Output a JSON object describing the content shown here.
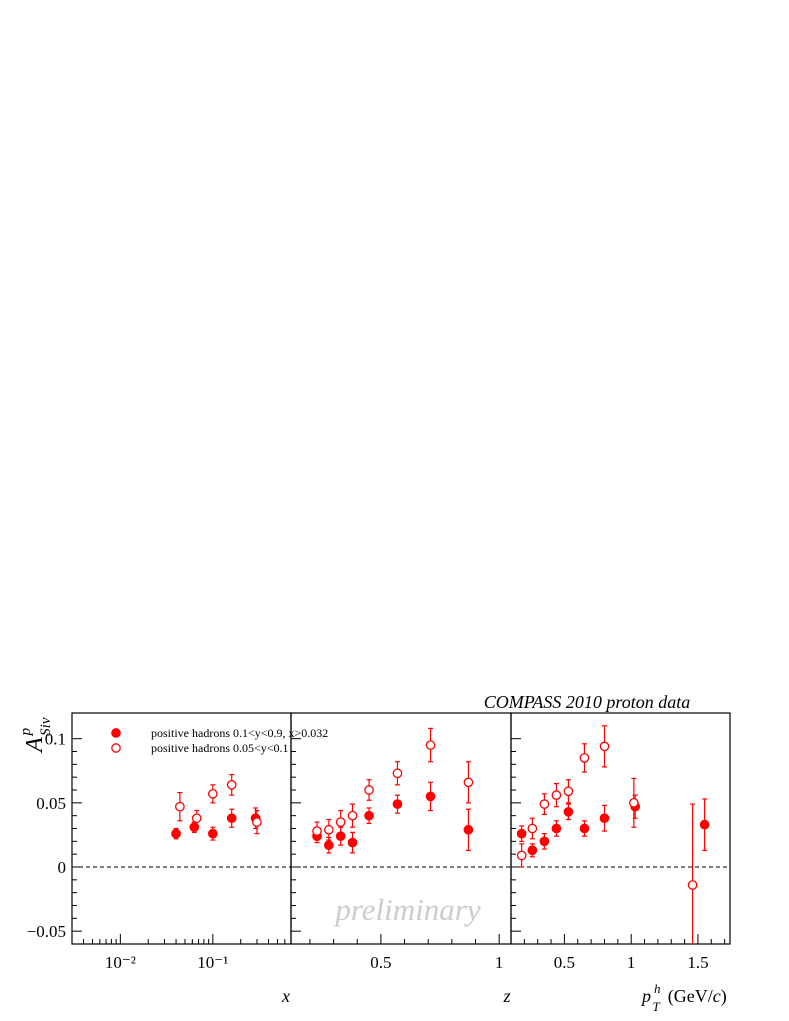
{
  "chart_data": {
    "type": "scatter",
    "title": "COMPASS 2010 proton data",
    "watermark": "preliminary",
    "ylabel": {
      "base": "A",
      "sup": "p",
      "sub": "Siv"
    },
    "ylim": [
      -0.06,
      0.12
    ],
    "yticks": [
      -0.05,
      0,
      0.05,
      0.1
    ],
    "ytick_labels": [
      "−0.05",
      "0",
      "0.05",
      "0.1"
    ],
    "reference_line": {
      "y": 0,
      "style": "dashed"
    },
    "colors": {
      "series": "#ff0000",
      "axes": "#000000",
      "watermark": "#cccccc"
    },
    "legend": {
      "placement": "top-left",
      "entries": [
        {
          "marker": "filled-circle",
          "label": "positive hadrons 0.1<y<0.9, x>0.032"
        },
        {
          "marker": "open-circle",
          "label": "positive hadrons 0.05<y<0.1"
        }
      ]
    },
    "panels": [
      {
        "xlabel": "x",
        "xscale": "log",
        "xlim": [
          0.003,
          0.7
        ],
        "xtick_labels": [
          "10⁻²",
          "10⁻¹"
        ],
        "series": [
          {
            "name": "positive hadrons 0.1<y<0.9, x>0.032",
            "marker": "filled",
            "x": [
              0.04,
              0.063,
              0.1,
              0.16,
              0.29
            ],
            "y": [
              0.026,
              0.031,
              0.026,
              0.038,
              0.038
            ],
            "err": [
              0.004,
              0.004,
              0.005,
              0.007,
              0.008
            ]
          },
          {
            "name": "positive hadrons 0.05<y<0.1",
            "marker": "open",
            "x": [
              0.044,
              0.067,
              0.1,
              0.16,
              0.3
            ],
            "y": [
              0.047,
              0.038,
              0.057,
              0.064,
              0.035
            ],
            "err": [
              0.011,
              0.006,
              0.007,
              0.008,
              0.009
            ]
          }
        ]
      },
      {
        "xlabel": "z",
        "xscale": "linear",
        "xlim": [
          0.12,
          1.05
        ],
        "xtick_labels": [
          "0.5",
          "1"
        ],
        "series": [
          {
            "name": "positive hadrons 0.1<y<0.9, x>0.032",
            "marker": "filled",
            "x": [
              0.23,
              0.28,
              0.33,
              0.38,
              0.45,
              0.57,
              0.71,
              0.87
            ],
            "y": [
              0.024,
              0.017,
              0.024,
              0.019,
              0.04,
              0.049,
              0.055,
              0.029
            ],
            "err": [
              0.005,
              0.006,
              0.007,
              0.008,
              0.006,
              0.007,
              0.011,
              0.016
            ]
          },
          {
            "name": "positive hadrons 0.05<y<0.1",
            "marker": "open",
            "x": [
              0.23,
              0.28,
              0.33,
              0.38,
              0.45,
              0.57,
              0.71,
              0.87
            ],
            "y": [
              0.028,
              0.029,
              0.035,
              0.04,
              0.06,
              0.073,
              0.095,
              0.066
            ],
            "err": [
              0.007,
              0.008,
              0.009,
              0.009,
              0.008,
              0.009,
              0.013,
              0.016
            ]
          }
        ]
      },
      {
        "xlabel": "p_T^h (GeV/c)",
        "xscale": "linear",
        "xlim": [
          0.1,
          1.74
        ],
        "xtick_labels": [
          "0.5",
          "1",
          "1.5"
        ],
        "series": [
          {
            "name": "positive hadrons 0.1<y<0.9, x>0.032",
            "marker": "filled",
            "x": [
              0.18,
              0.26,
              0.35,
              0.44,
              0.53,
              0.65,
              0.8,
              1.03,
              1.55
            ],
            "y": [
              0.026,
              0.013,
              0.02,
              0.03,
              0.043,
              0.03,
              0.038,
              0.047,
              0.033
            ],
            "err": [
              0.006,
              0.005,
              0.006,
              0.006,
              0.006,
              0.006,
              0.01,
              0.009,
              0.02
            ]
          },
          {
            "name": "positive hadrons 0.05<y<0.1",
            "marker": "open",
            "x": [
              0.18,
              0.26,
              0.35,
              0.44,
              0.53,
              0.65,
              0.8,
              1.02,
              1.46
            ],
            "y": [
              0.009,
              0.03,
              0.049,
              0.056,
              0.059,
              0.085,
              0.094,
              0.05,
              -0.014
            ],
            "err": [
              0.009,
              0.008,
              0.008,
              0.009,
              0.009,
              0.011,
              0.016,
              0.019,
              0.063
            ]
          }
        ]
      }
    ]
  }
}
